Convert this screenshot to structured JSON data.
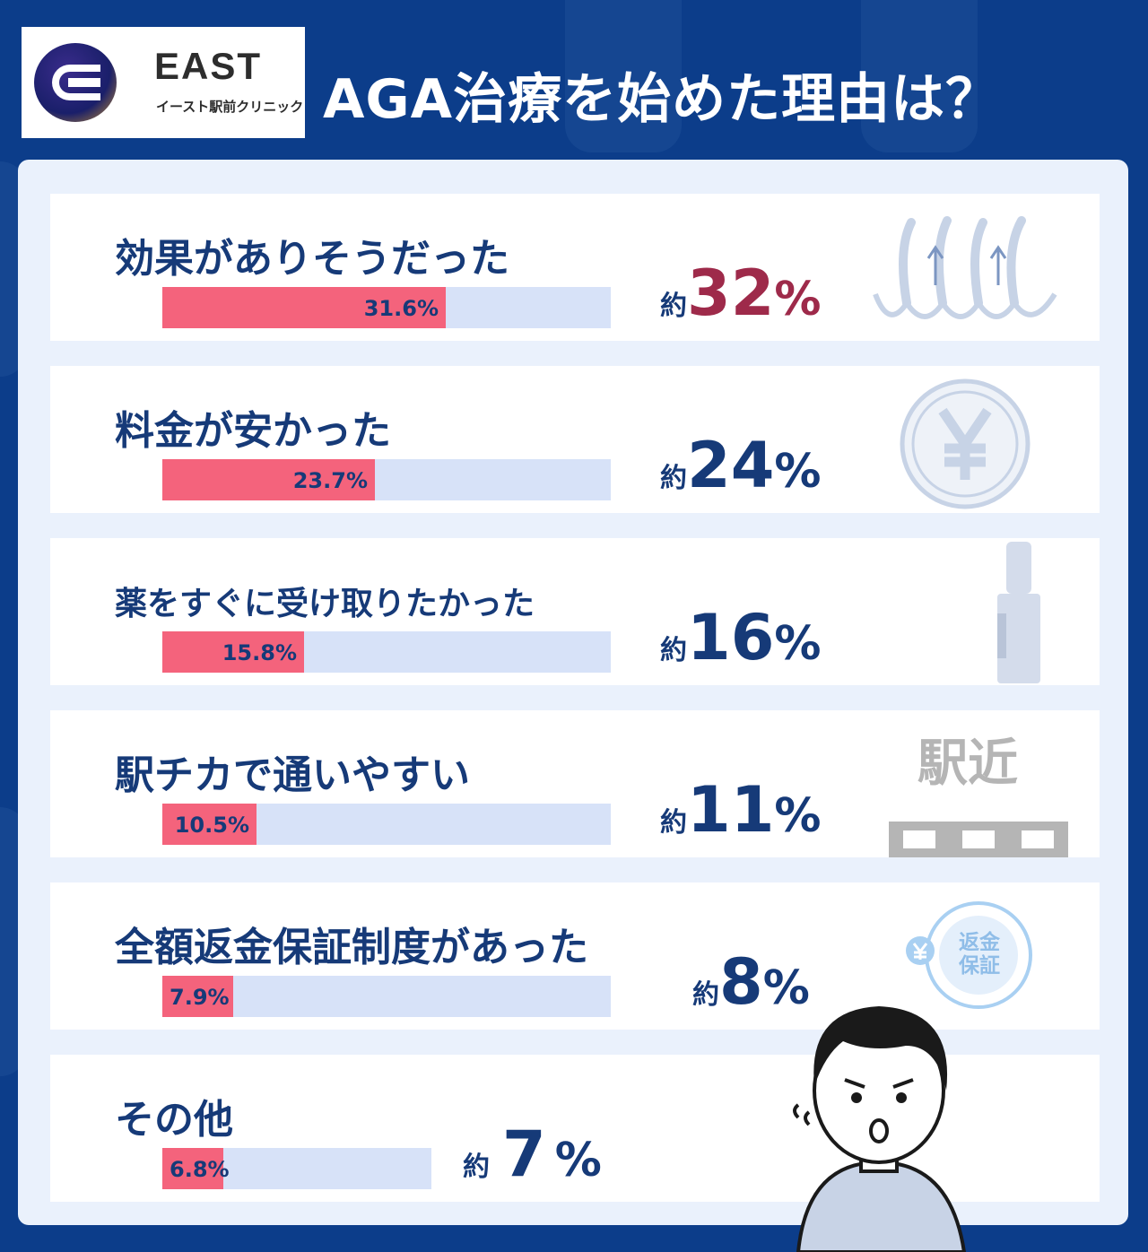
{
  "logo": {
    "name": "EAST",
    "subtitle": "イースト駅前クリニック"
  },
  "title": "AGA治療を始めた理由は？",
  "colors": {
    "background": "#0c3d8a",
    "panel": "#eaf1fc",
    "bar_fill": "#f4637c",
    "bar_track": "#d7e2f8",
    "text": "#163a78",
    "highlight": "#9e2a4a"
  },
  "rows": [
    {
      "label": "効果がありそうだった",
      "bar_label": "31.6%",
      "approx_prefix": "約",
      "approx_number": "32",
      "approx_unit": "%",
      "icon": "hair-growth-icon"
    },
    {
      "label": "料金が安かった",
      "bar_label": "23.7%",
      "approx_prefix": "約",
      "approx_number": "24",
      "approx_unit": "%",
      "icon": "yen-coin-icon"
    },
    {
      "label": "薬をすぐに受け取りたかった",
      "bar_label": "15.8%",
      "approx_prefix": "約",
      "approx_number": "16",
      "approx_unit": "%",
      "icon": "medicine-bottle-icon"
    },
    {
      "label": "駅チカで通いやすい",
      "bar_label": "10.5%",
      "approx_prefix": "約",
      "approx_number": "11",
      "approx_unit": "%",
      "icon": "station-icon",
      "icon_text": "駅近"
    },
    {
      "label": "全額返金保証制度があった",
      "bar_label": "7.9%",
      "approx_prefix": "約",
      "approx_number": "8",
      "approx_unit": "%",
      "icon": "refund-guarantee-icon",
      "icon_text": "返金保証"
    },
    {
      "label": "その他",
      "bar_label": "6.8%",
      "approx_prefix": "約",
      "approx_number": "7",
      "approx_unit": "%",
      "icon": "worried-person-icon"
    }
  ],
  "chart_data": {
    "type": "bar",
    "orientation": "horizontal",
    "title": "AGA治療を始めた理由は？",
    "categories": [
      "効果がありそうだった",
      "料金が安かった",
      "薬をすぐに受け取りたかった",
      "駅チカで通いやすい",
      "全額返金保証制度があった",
      "その他"
    ],
    "values": [
      31.6,
      23.7,
      15.8,
      10.5,
      7.9,
      6.8
    ],
    "value_labels": [
      "31.6%",
      "23.7%",
      "15.8%",
      "10.5%",
      "7.9%",
      "6.8%"
    ],
    "approx_labels": [
      "約32%",
      "約24%",
      "約16%",
      "約11%",
      "約8%",
      "約7%"
    ],
    "xlim": [
      0,
      50
    ],
    "grid": false,
    "legend": "none"
  }
}
